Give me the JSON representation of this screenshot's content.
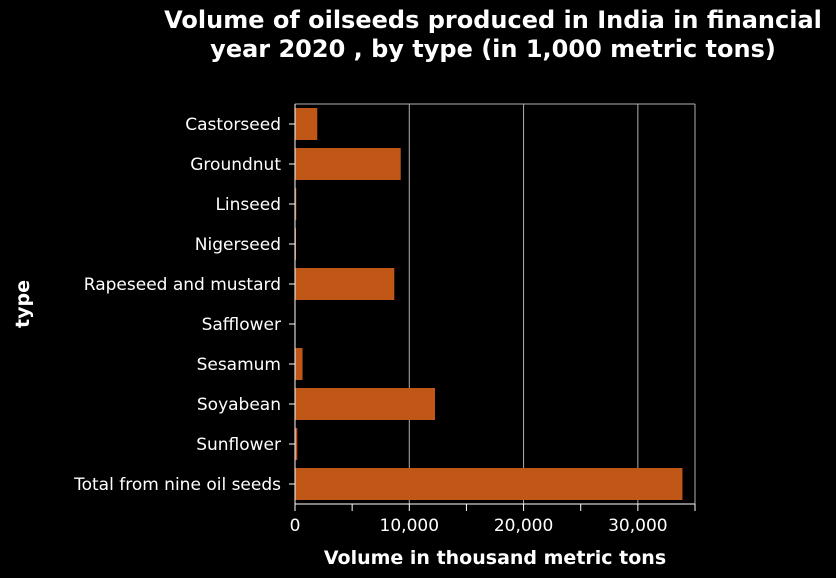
{
  "chart_data": {
    "type": "bar",
    "orientation": "horizontal",
    "title": "Volume of oilseeds produced in India in financial year 2020 , by type (in 1,000 metric tons)",
    "xlabel": "Volume in thousand metric tons",
    "ylabel": "type",
    "categories": [
      "Castorseed",
      "Groundnut",
      "Linseed",
      "Nigerseed",
      "Rapeseed and mustard",
      "Safflower",
      "Sesamum",
      "Soyabean",
      "Sunflower",
      "Total from nine oil seeds"
    ],
    "values": [
      1950,
      9250,
      110,
      90,
      8690,
      30,
      660,
      12250,
      200,
      33900
    ],
    "xlim": [
      0,
      35000
    ],
    "xticks": [
      0,
      10000,
      20000,
      30000
    ],
    "xtick_labels": [
      "0",
      "10,000",
      "20,000",
      "30,000"
    ],
    "grid": true,
    "legend": "none",
    "colors": {
      "bar": "#c05717",
      "background": "#000000",
      "grid": "#b0b0b0",
      "text": "#ffffff"
    }
  }
}
